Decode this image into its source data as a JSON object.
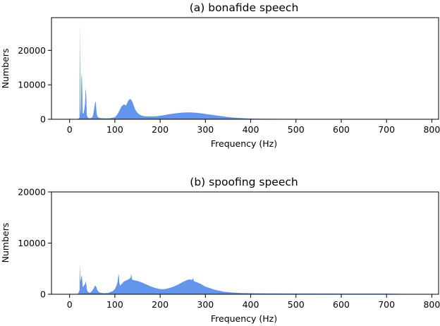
{
  "chart_data": [
    {
      "type": "area",
      "title": "(a) bonafide speech",
      "xlabel": "Frequency (Hz)",
      "ylabel": "Numbers",
      "xlim": [
        -40,
        815
      ],
      "ylim": [
        0,
        29500
      ],
      "x_ticks": [
        "0",
        "100",
        "200",
        "300",
        "400",
        "500",
        "600",
        "700",
        "800"
      ],
      "y_ticks": [
        "0",
        "10000",
        "20000"
      ],
      "series": [
        {
          "color": "#6495ed",
          "x": [
            18,
            22,
            23,
            24,
            25,
            26,
            27,
            28,
            29,
            30,
            31,
            32,
            33,
            34,
            35,
            36,
            37,
            38,
            39,
            40,
            41,
            42,
            45,
            48,
            50,
            52,
            54,
            56,
            57,
            58,
            59,
            60,
            62,
            64,
            66,
            70,
            80,
            90,
            100,
            105,
            110,
            115,
            120,
            125,
            128,
            131,
            133,
            135,
            137,
            139,
            141,
            143,
            145,
            148,
            152,
            158,
            165,
            175,
            190,
            205,
            220,
            235,
            250,
            265,
            280,
            295,
            310,
            330,
            350,
            370,
            390,
            400,
            420,
            450,
            500,
            600,
            700,
            800
          ],
          "y": [
            0,
            500,
            28000,
            1200,
            3000,
            12000,
            13200,
            9000,
            2000,
            1500,
            1800,
            2500,
            3200,
            4500,
            7500,
            9200,
            6000,
            1500,
            800,
            600,
            450,
            350,
            300,
            400,
            600,
            1200,
            2800,
            4500,
            5200,
            4800,
            3000,
            1500,
            700,
            500,
            400,
            300,
            250,
            300,
            600,
            1300,
            2500,
            3800,
            4300,
            4000,
            5000,
            5600,
            5900,
            5800,
            5500,
            5000,
            4200,
            3500,
            2800,
            2200,
            1600,
            1100,
            900,
            800,
            850,
            1100,
            1450,
            1750,
            1950,
            2000,
            1900,
            1650,
            1350,
            1000,
            650,
            400,
            250,
            200,
            150,
            120,
            100,
            100,
            100,
            0
          ]
        }
      ]
    },
    {
      "type": "area",
      "title": "(b) spoofing speech",
      "xlabel": "Frequency (Hz)",
      "ylabel": "Numbers",
      "xlim": [
        -40,
        815
      ],
      "ylim": [
        0,
        20000
      ],
      "x_ticks": [
        "0",
        "100",
        "200",
        "300",
        "400",
        "500",
        "600",
        "700",
        "800"
      ],
      "y_ticks": [
        "0",
        "10000",
        "20000"
      ],
      "series": [
        {
          "color": "#6495ed",
          "x": [
            18,
            22,
            23,
            24,
            25,
            26,
            27,
            28,
            29,
            30,
            31,
            32,
            33,
            34,
            35,
            36,
            37,
            38,
            39,
            40,
            41,
            42,
            45,
            48,
            50,
            53,
            55,
            57,
            59,
            61,
            64,
            68,
            75,
            85,
            95,
            100,
            104,
            106,
            107,
            108,
            109,
            110,
            112,
            115,
            120,
            125,
            130,
            133,
            135,
            136,
            137,
            138,
            140,
            145,
            150,
            160,
            170,
            180,
            190,
            200,
            210,
            220,
            230,
            240,
            250,
            260,
            265,
            270,
            272,
            273,
            274,
            276,
            280,
            290,
            300,
            320,
            340,
            360,
            380,
            400,
            450,
            500,
            600,
            700,
            800
          ],
          "y": [
            0,
            800,
            6000,
            2500,
            2800,
            3500,
            3600,
            2800,
            1500,
            1400,
            1600,
            1800,
            1800,
            2000,
            2200,
            2600,
            1900,
            1000,
            700,
            550,
            450,
            400,
            300,
            500,
            700,
            1100,
            1500,
            1700,
            1400,
            900,
            500,
            300,
            200,
            250,
            600,
            1000,
            1800,
            2500,
            3100,
            4000,
            3500,
            2200,
            1700,
            2000,
            2500,
            2700,
            2900,
            3100,
            3300,
            4000,
            3500,
            2900,
            2800,
            2700,
            2600,
            2300,
            1900,
            1500,
            1200,
            1000,
            1000,
            1200,
            1500,
            1900,
            2400,
            2800,
            2900,
            2800,
            3000,
            3200,
            2700,
            2500,
            2400,
            2000,
            1500,
            900,
            500,
            350,
            250,
            200,
            150,
            130,
            120,
            120,
            0
          ]
        }
      ]
    }
  ]
}
